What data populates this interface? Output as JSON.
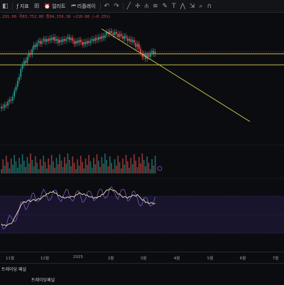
{
  "toolbar": {
    "items": [
      {
        "label": "지표",
        "icon": "indicator-icon"
      },
      {
        "label": "얼러트",
        "icon": "alert-icon"
      },
      {
        "label": "리플레이",
        "icon": "replay-icon"
      }
    ],
    "drawing_tools": [
      "line-tool-icon",
      "cross-tool-icon",
      "pitchfork-icon",
      "fib-icon",
      "brush-icon",
      "text-tool-icon",
      "pattern-icon",
      "measure-icon",
      "zoom-icon",
      "magnet-icon"
    ]
  },
  "ohlc_text": ".291.06  저83,752.80  종84,159.38  −210.08 (−0.25%)",
  "colors": {
    "up": "#26a69a",
    "down": "#ef5350",
    "trend": "#d9d24a",
    "rsi": "#e8e2b6",
    "stoch": "#7e57c2"
  },
  "chart_data": {
    "type": "candlestick",
    "x_ticks": [
      "11월",
      "12월",
      "2025",
      "2월",
      "3월",
      "4월",
      "5월",
      "6월",
      "7월"
    ],
    "horizontal_levels": [
      {
        "price": 0.73
      },
      {
        "price": 0.62
      }
    ],
    "trendline": {
      "from_index": 96,
      "to_index": 200
    },
    "candles_open_close": [
      [
        0.18,
        0.2
      ],
      [
        0.2,
        0.19
      ],
      [
        0.19,
        0.22
      ],
      [
        0.22,
        0.21
      ],
      [
        0.21,
        0.25
      ],
      [
        0.25,
        0.27
      ],
      [
        0.27,
        0.26
      ],
      [
        0.26,
        0.3
      ],
      [
        0.3,
        0.36
      ],
      [
        0.36,
        0.4
      ],
      [
        0.4,
        0.46
      ],
      [
        0.46,
        0.5
      ],
      [
        0.5,
        0.58
      ],
      [
        0.58,
        0.62
      ],
      [
        0.62,
        0.66
      ],
      [
        0.66,
        0.64
      ],
      [
        0.64,
        0.7
      ],
      [
        0.7,
        0.74
      ],
      [
        0.74,
        0.72
      ],
      [
        0.72,
        0.78
      ],
      [
        0.78,
        0.82
      ],
      [
        0.82,
        0.8
      ],
      [
        0.8,
        0.84
      ],
      [
        0.84,
        0.86
      ],
      [
        0.86,
        0.83
      ],
      [
        0.83,
        0.86
      ],
      [
        0.86,
        0.88
      ],
      [
        0.88,
        0.85
      ],
      [
        0.85,
        0.88
      ],
      [
        0.88,
        0.86
      ],
      [
        0.86,
        0.89
      ],
      [
        0.89,
        0.87
      ],
      [
        0.87,
        0.9
      ],
      [
        0.9,
        0.86
      ],
      [
        0.86,
        0.88
      ],
      [
        0.88,
        0.84
      ],
      [
        0.84,
        0.87
      ],
      [
        0.87,
        0.85
      ],
      [
        0.85,
        0.88
      ],
      [
        0.88,
        0.86
      ],
      [
        0.86,
        0.88
      ],
      [
        0.88,
        0.9
      ],
      [
        0.9,
        0.87
      ],
      [
        0.87,
        0.89
      ],
      [
        0.89,
        0.86
      ],
      [
        0.86,
        0.83
      ],
      [
        0.83,
        0.86
      ],
      [
        0.86,
        0.84
      ],
      [
        0.84,
        0.87
      ],
      [
        0.87,
        0.85
      ],
      [
        0.85,
        0.82
      ],
      [
        0.82,
        0.85
      ],
      [
        0.85,
        0.83
      ],
      [
        0.83,
        0.86
      ],
      [
        0.86,
        0.84
      ],
      [
        0.84,
        0.86
      ],
      [
        0.86,
        0.88
      ],
      [
        0.88,
        0.86
      ],
      [
        0.86,
        0.89
      ],
      [
        0.89,
        0.87
      ],
      [
        0.87,
        0.9
      ],
      [
        0.9,
        0.88
      ],
      [
        0.88,
        0.91
      ],
      [
        0.91,
        0.89
      ],
      [
        0.89,
        0.92
      ],
      [
        0.92,
        0.95
      ],
      [
        0.95,
        0.93
      ],
      [
        0.93,
        0.96
      ],
      [
        0.96,
        0.94
      ],
      [
        0.94,
        0.92
      ],
      [
        0.92,
        0.95
      ],
      [
        0.95,
        0.93
      ],
      [
        0.93,
        0.9
      ],
      [
        0.9,
        0.93
      ],
      [
        0.93,
        0.91
      ],
      [
        0.91,
        0.88
      ],
      [
        0.88,
        0.91
      ],
      [
        0.91,
        0.89
      ],
      [
        0.89,
        0.86
      ],
      [
        0.86,
        0.88
      ],
      [
        0.88,
        0.85
      ],
      [
        0.85,
        0.87
      ],
      [
        0.87,
        0.84
      ],
      [
        0.84,
        0.8
      ],
      [
        0.8,
        0.83
      ],
      [
        0.83,
        0.78
      ],
      [
        0.78,
        0.74
      ],
      [
        0.74,
        0.7
      ],
      [
        0.7,
        0.73
      ],
      [
        0.73,
        0.68
      ],
      [
        0.68,
        0.72
      ],
      [
        0.72,
        0.7
      ],
      [
        0.7,
        0.74
      ],
      [
        0.74,
        0.76
      ],
      [
        0.76,
        0.73
      ],
      [
        0.73,
        0.75
      ]
    ]
  },
  "bottom_tabs": [
    "트레이딩 패널",
    "트레이딩패널"
  ]
}
